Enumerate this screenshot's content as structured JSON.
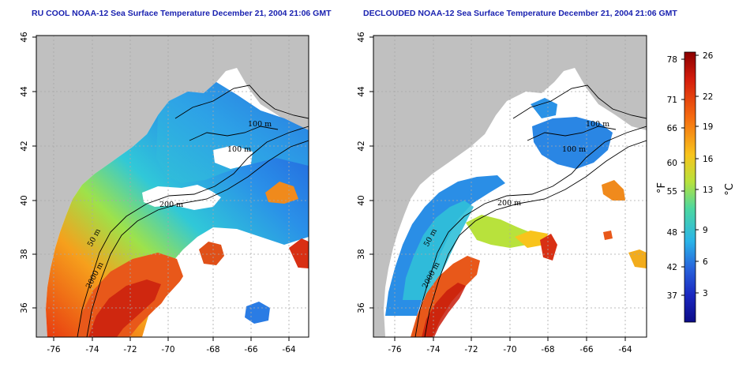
{
  "panels": [
    {
      "title": "RU COOL NOAA-12 Sea Surface Temperature December 21, 2004 21:06 GMT",
      "x_ticks": [
        "-76",
        "-74",
        "-72",
        "-70",
        "-68",
        "-66",
        "-64"
      ],
      "y_ticks": [
        "36",
        "38",
        "40",
        "42",
        "44",
        "46"
      ],
      "contour_labels": [
        "100 m",
        "100 m",
        "200 m",
        "50 m",
        "2000 m"
      ]
    },
    {
      "title": "DECLOUDED NOAA-12 Sea Surface Temperature December 21, 2004 21:06 GMT",
      "x_ticks": [
        "-76",
        "-74",
        "-72",
        "-70",
        "-68",
        "-66",
        "-64"
      ],
      "y_ticks": [
        "36",
        "38",
        "40",
        "42",
        "44",
        "46"
      ],
      "contour_labels": [
        "100 m",
        "100 m",
        "200 m",
        "50 m",
        "2000 m"
      ]
    }
  ],
  "colorbar": {
    "fahrenheit_label": "°F",
    "celsius_label": "°C",
    "fahrenheit_ticks": [
      "78",
      "71",
      "66",
      "60",
      "55",
      "48",
      "42",
      "37"
    ],
    "celsius_ticks": [
      "26",
      "22",
      "19",
      "16",
      "13",
      "9",
      "6",
      "3"
    ],
    "gradient_colors": [
      "#8b0000",
      "#d41c0c",
      "#f56a10",
      "#f8c41c",
      "#b8e23c",
      "#4cd7a0",
      "#2ab4e8",
      "#2864dc",
      "#1a28c0",
      "#0c0c88"
    ]
  },
  "colors": {
    "land": "#c0c0c0",
    "grid": "#a8a8a8",
    "title": "#1a22b0"
  }
}
